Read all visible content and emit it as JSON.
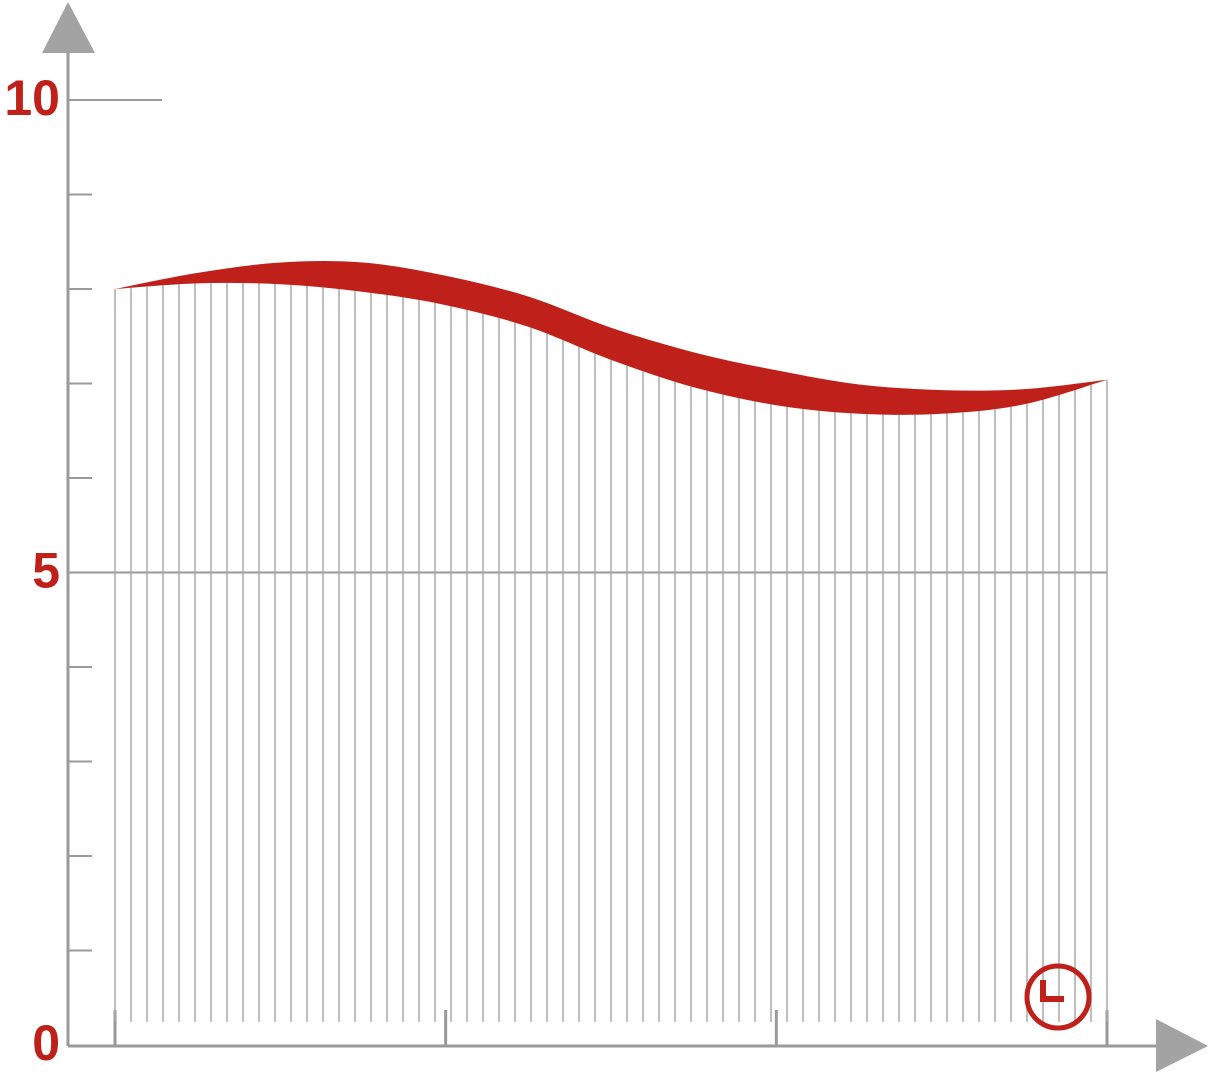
{
  "chart_data": {
    "type": "band",
    "color": "#c0201a",
    "x": [
      0,
      0.25,
      0.5,
      0.75,
      1,
      1.25,
      1.5,
      1.75,
      2,
      2.25,
      2.5,
      2.75,
      3
    ],
    "series": [
      {
        "values": [
          8.0,
          8.17,
          8.28,
          8.28,
          8.14,
          7.92,
          7.59,
          7.33,
          7.14,
          6.99,
          6.93,
          6.94,
          7.04
        ]
      },
      {
        "values": [
          8.0,
          8.06,
          8.05,
          7.97,
          7.83,
          7.6,
          7.25,
          6.96,
          6.77,
          6.68,
          6.68,
          6.78,
          7.04
        ]
      }
    ],
    "xlim": [
      0,
      3
    ],
    "xticks": [
      0,
      1,
      2,
      3
    ],
    "ylim": [
      0,
      10
    ],
    "yticks": [
      0,
      5,
      10
    ]
  }
}
